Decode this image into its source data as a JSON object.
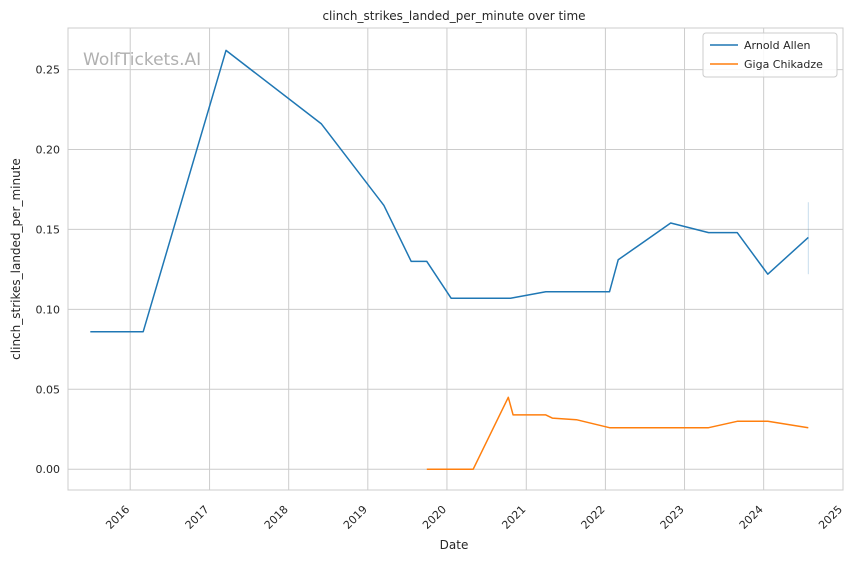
{
  "chart_data": {
    "type": "line",
    "title": "clinch_strikes_landed_per_minute over time",
    "xlabel": "Date",
    "ylabel": "clinch_strikes_landed_per_minute",
    "watermark": "WolfTickets.AI",
    "xlim": [
      "2015-03-20",
      "2025-01-01"
    ],
    "ylim": [
      -0.013,
      0.276
    ],
    "x_ticks": [
      "2016",
      "2017",
      "2018",
      "2019",
      "2020",
      "2021",
      "2022",
      "2023",
      "2024",
      "2025"
    ],
    "y_ticks": [
      "0.00",
      "0.05",
      "0.10",
      "0.15",
      "0.20",
      "0.25"
    ],
    "grid": true,
    "legend_position": "top-right",
    "series": [
      {
        "name": "Arnold Allen",
        "color": "#1f77b4",
        "x": [
          "2015-07-01",
          "2016-03-01",
          "2017-03-18",
          "2018-06-01",
          "2019-03-16",
          "2019-07-20",
          "2019-09-30",
          "2020-01-20",
          "2020-10-20",
          "2021-04-01",
          "2022-01-20",
          "2022-03-01",
          "2022-10-29",
          "2023-04-22",
          "2023-09-01",
          "2024-01-20",
          "2024-07-25"
        ],
        "y": [
          0.086,
          0.086,
          0.262,
          0.216,
          0.165,
          0.13,
          0.13,
          0.107,
          0.107,
          0.111,
          0.111,
          0.131,
          0.154,
          0.148,
          0.148,
          0.122,
          0.145
        ],
        "error_band": {
          "x": "2024-07-25",
          "low": 0.122,
          "high": 0.167
        }
      },
      {
        "name": "Giga Chikadze",
        "color": "#ff7f0e",
        "x": [
          "2019-09-30",
          "2020-05-01",
          "2020-10-10",
          "2020-11-01",
          "2021-04-01",
          "2021-05-01",
          "2021-08-20",
          "2022-01-20",
          "2023-04-22",
          "2023-09-01",
          "2024-01-20",
          "2024-07-25"
        ],
        "y": [
          0.0,
          0.0,
          0.045,
          0.034,
          0.034,
          0.032,
          0.031,
          0.026,
          0.026,
          0.03,
          0.03,
          0.026
        ]
      }
    ]
  }
}
